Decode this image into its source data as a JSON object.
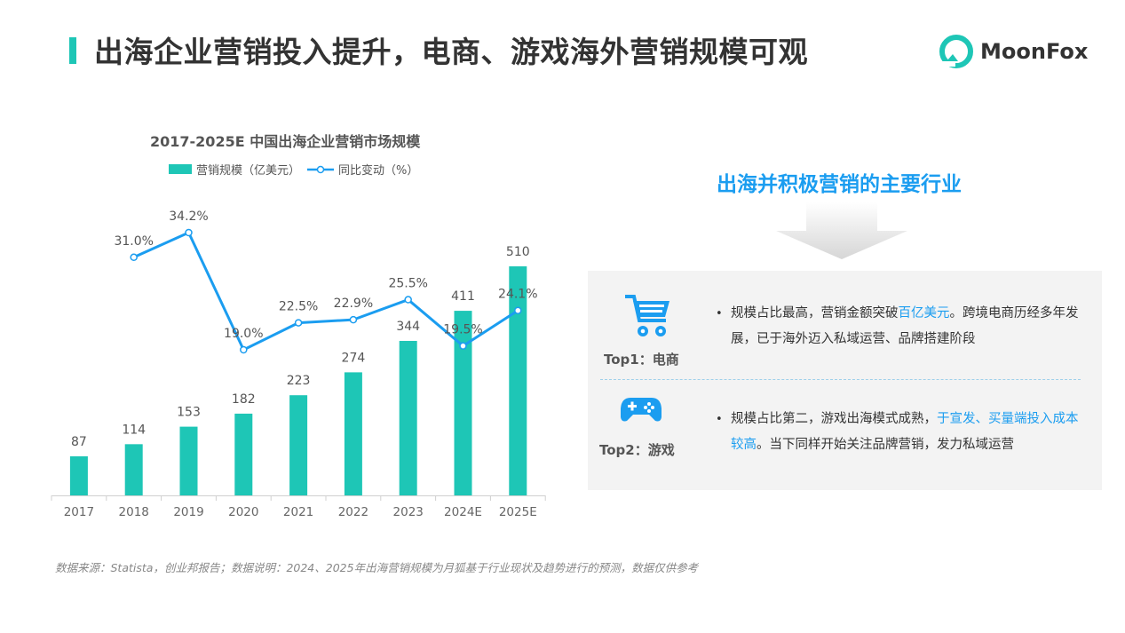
{
  "page": {
    "title": "出海企业营销投入提升，电商、游戏海外营销规模可观",
    "logo_text": "MoonFox",
    "footnote": "数据来源：Statista，创业邦报告；数据说明：2024、2025年出海营销规模为月狐基于行业现状及趋势进行的预测，数据仅供参考"
  },
  "colors": {
    "accent_teal": "#1ec6b6",
    "accent_blue": "#1b9df0",
    "line_blue": "#1b9df0"
  },
  "chart_data": {
    "type": "bar",
    "title": "2017-2025E 中国出海企业营销市场规模",
    "categories": [
      "2017",
      "2018",
      "2019",
      "2020",
      "2021",
      "2022",
      "2023",
      "2024E",
      "2025E"
    ],
    "series": [
      {
        "name": "营销规模（亿美元）",
        "type": "bar",
        "values": [
          87,
          114,
          153,
          182,
          223,
          274,
          344,
          411,
          510
        ]
      },
      {
        "name": "同比变动（%）",
        "type": "line",
        "values": [
          null,
          31.0,
          34.2,
          19.0,
          22.5,
          22.9,
          25.5,
          19.5,
          24.1
        ]
      }
    ],
    "bar_labels": [
      "87",
      "114",
      "153",
      "182",
      "223",
      "274",
      "344",
      "411",
      "510"
    ],
    "line_labels": [
      "",
      "31.0%",
      "34.2%",
      "19.0%",
      "22.5%",
      "22.9%",
      "25.5%",
      "19.5%",
      "24.1%"
    ],
    "legend_position": "top",
    "grid": false
  },
  "industries": {
    "title": "出海并积极营销的主要行业",
    "items": [
      {
        "label": "Top1：电商",
        "icon": "shopping-cart-icon",
        "text_before": "规模占比最高，营销金额突破",
        "highlight": "百亿美元",
        "text_after": "。跨境电商历经多年发展，已于海外迈入私域运营、品牌搭建阶段"
      },
      {
        "label": "Top2：游戏",
        "icon": "gamepad-icon",
        "text_before": "规模占比第二，游戏出海模式成熟，",
        "highlight": "于宣发、买量端投入成本较高",
        "text_after": "。当下同样开始关注品牌营销，发力私域运营"
      }
    ]
  }
}
